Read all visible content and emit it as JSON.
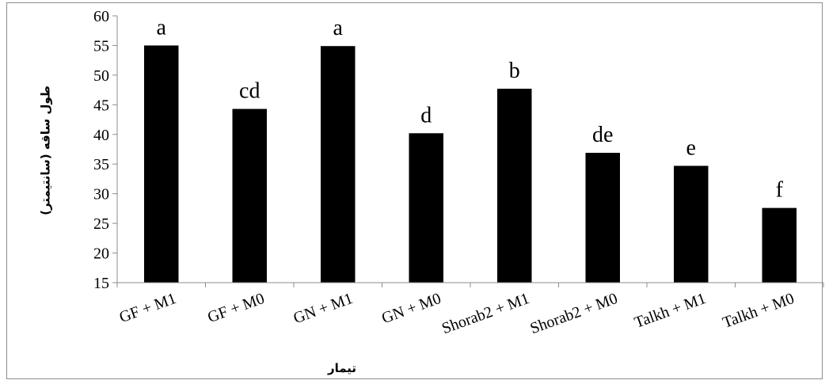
{
  "chart_data": {
    "type": "bar",
    "categories": [
      "GF + M1",
      "GF + M0",
      "GN + M1",
      "GN + M0",
      "Shorab2 + M1",
      "Shorab2 + M0",
      "Talkh + M1",
      "Talkh + M0"
    ],
    "values": [
      55.0,
      44.3,
      54.9,
      40.2,
      47.7,
      36.9,
      34.7,
      27.6
    ],
    "data_labels": [
      "a",
      "cd",
      "a",
      "d",
      "b",
      "de",
      "e",
      "f"
    ],
    "ylim": [
      15,
      60
    ],
    "yticks": [
      "15",
      "20",
      "25",
      "30",
      "35",
      "40",
      "45",
      "50",
      "55",
      "60"
    ],
    "ylabel": "طول ساقه (سانتیمتر)",
    "xlabel": "تیمار",
    "grid": false,
    "bar_color": "#000000"
  }
}
